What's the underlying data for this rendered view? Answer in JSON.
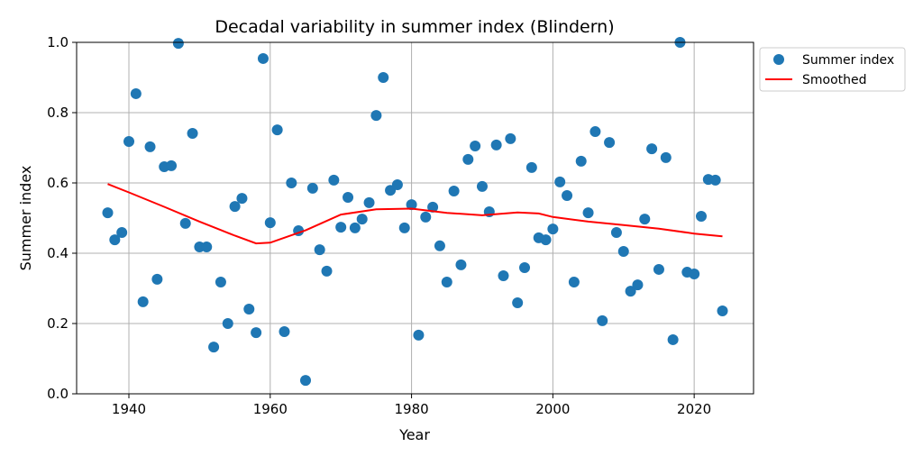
{
  "chart_data": {
    "type": "scatter",
    "title": "Decadal variability in summer index (Blindern)",
    "xlabel": "Year",
    "ylabel": "Summer index",
    "xlim": [
      1932.6,
      2028.4
    ],
    "ylim": [
      0,
      1
    ],
    "xticks": [
      1940,
      1960,
      1980,
      2000,
      2020
    ],
    "yticks": [
      "0.0",
      "0.2",
      "0.4",
      "0.6",
      "0.8",
      "1.0"
    ],
    "grid": true,
    "legend_position": "outside-top-right",
    "series": [
      {
        "name": "Summer index",
        "kind": "points",
        "color": "#1f77b4",
        "x": [
          1937,
          1938,
          1939,
          1940,
          1941,
          1942,
          1943,
          1944,
          1945,
          1946,
          1947,
          1948,
          1949,
          1950,
          1951,
          1952,
          1953,
          1954,
          1955,
          1956,
          1957,
          1958,
          1959,
          1960,
          1961,
          1962,
          1963,
          1964,
          1965,
          1966,
          1967,
          1968,
          1969,
          1970,
          1971,
          1972,
          1973,
          1974,
          1975,
          1976,
          1977,
          1978,
          1979,
          1980,
          1981,
          1982,
          1983,
          1984,
          1985,
          1986,
          1987,
          1988,
          1989,
          1990,
          1991,
          1992,
          1993,
          1994,
          1995,
          1996,
          1997,
          1998,
          1999,
          2000,
          2001,
          2002,
          2003,
          2004,
          2005,
          2006,
          2007,
          2008,
          2009,
          2010,
          2011,
          2012,
          2013,
          2014,
          2015,
          2016,
          2017,
          2018,
          2019,
          2020,
          2021,
          2022,
          2023,
          2024
        ],
        "y": [
          0.515,
          0.438,
          0.459,
          0.718,
          0.854,
          0.262,
          0.703,
          0.326,
          0.646,
          0.649,
          0.997,
          0.485,
          0.741,
          0.418,
          0.418,
          0.133,
          0.318,
          0.2,
          0.533,
          0.556,
          0.241,
          0.174,
          0.954,
          0.487,
          0.751,
          0.177,
          0.6,
          0.464,
          0.038,
          0.585,
          0.41,
          0.349,
          0.608,
          0.474,
          0.559,
          0.472,
          0.497,
          0.544,
          0.792,
          0.9,
          0.579,
          0.595,
          0.472,
          0.538,
          0.167,
          0.503,
          0.531,
          0.421,
          0.318,
          0.577,
          0.367,
          0.667,
          0.705,
          0.59,
          0.518,
          0.708,
          0.336,
          0.726,
          0.259,
          0.359,
          0.644,
          0.444,
          0.438,
          0.469,
          0.603,
          0.564,
          0.318,
          0.662,
          0.515,
          0.746,
          0.208,
          0.715,
          0.459,
          0.405,
          0.292,
          0.31,
          0.497,
          0.697,
          0.354,
          0.672,
          0.154,
          1.0,
          0.346,
          0.341,
          0.505,
          0.61,
          0.608,
          0.236
        ]
      },
      {
        "name": "Smoothed",
        "kind": "line",
        "color": "#ff0000",
        "x": [
          1937,
          1940,
          1945,
          1950,
          1955,
          1958,
          1960,
          1965,
          1970,
          1975,
          1980,
          1985,
          1990,
          1995,
          1998,
          2000,
          2005,
          2010,
          2015,
          2020,
          2024
        ],
        "y": [
          0.597,
          0.573,
          0.532,
          0.49,
          0.45,
          0.428,
          0.43,
          0.465,
          0.51,
          0.525,
          0.527,
          0.515,
          0.508,
          0.516,
          0.513,
          0.503,
          0.49,
          0.48,
          0.47,
          0.456,
          0.448
        ]
      }
    ]
  }
}
